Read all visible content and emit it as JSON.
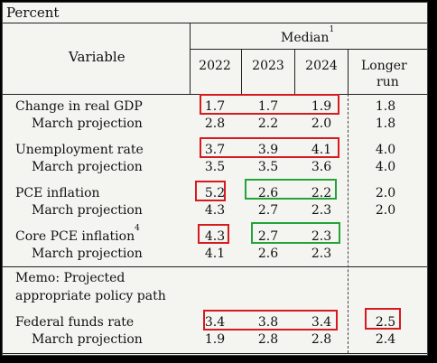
{
  "unit_label": "Percent",
  "header": {
    "variable": "Variable",
    "median": "Median",
    "median_note": "1",
    "years": [
      "2022",
      "2023",
      "2024"
    ],
    "longer": "Longer",
    "run": "run"
  },
  "rows": {
    "gdp": {
      "label": "Change in real GDP",
      "note": "",
      "values": [
        "1.7",
        "1.7",
        "1.9",
        "1.8"
      ]
    },
    "gdp_mar": {
      "label": "March projection",
      "values": [
        "2.8",
        "2.2",
        "2.0",
        "1.8"
      ]
    },
    "unemp": {
      "label": "Unemployment rate",
      "values": [
        "3.7",
        "3.9",
        "4.1",
        "4.0"
      ]
    },
    "unemp_mar": {
      "label": "March projection",
      "values": [
        "3.5",
        "3.5",
        "3.6",
        "4.0"
      ]
    },
    "pce": {
      "label": "PCE inflation",
      "values": [
        "5.2",
        "2.6",
        "2.2",
        "2.0"
      ]
    },
    "pce_mar": {
      "label": "March projection",
      "values": [
        "4.3",
        "2.7",
        "2.3",
        "2.0"
      ]
    },
    "core": {
      "label": "Core PCE inflation",
      "note": "4",
      "values": [
        "4.3",
        "2.7",
        "2.3"
      ]
    },
    "core_mar": {
      "label": "March projection",
      "values": [
        "4.1",
        "2.6",
        "2.3"
      ]
    },
    "memo_1": "Memo: Projected",
    "memo_2": "appropriate policy path",
    "ffr": {
      "label": "Federal funds rate",
      "values": [
        "3.4",
        "3.8",
        "3.4",
        "2.5"
      ]
    },
    "ffr_mar": {
      "label": "March projection",
      "values": [
        "1.9",
        "2.8",
        "2.8",
        "2.4"
      ]
    }
  },
  "annotation_colors": {
    "red": "#d71920",
    "green": "#24a33a"
  }
}
